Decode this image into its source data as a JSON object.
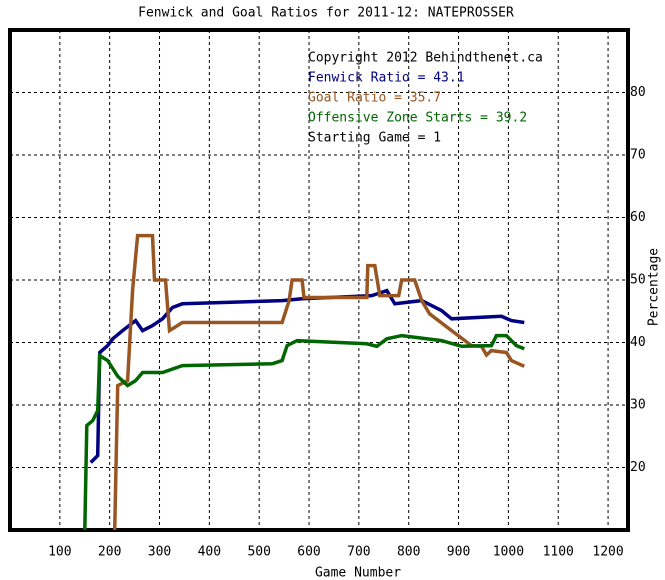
{
  "chart_data": {
    "type": "line",
    "title": "Fenwick and Goal Ratios for 2011-12: NATEPROSSER",
    "x_label": "Game Number",
    "y_label": "Percentage",
    "xlim": [
      0,
      1240
    ],
    "ylim": [
      10,
      90
    ],
    "xticks": [
      100,
      200,
      300,
      400,
      500,
      600,
      700,
      800,
      900,
      1000,
      1100,
      1200
    ],
    "yticks": [
      20,
      30,
      40,
      50,
      60,
      70,
      80
    ],
    "grid": true,
    "annotations": [
      {
        "text": "Copyright 2012 Behindthenet.ca",
        "color": "#000000"
      },
      {
        "text": "Fenwick Ratio = 43.1",
        "color": "#000080"
      },
      {
        "text": "Goal Ratio = 35.7",
        "color": "#995522"
      },
      {
        "text": "Offensive Zone Starts = 39.2",
        "color": "#006600"
      },
      {
        "text": "Starting Game = 1",
        "color": "#000000"
      }
    ],
    "series": [
      {
        "color": "#000080",
        "x": [
          162,
          176,
          180,
          196,
          206,
          226,
          252,
          266,
          286,
          306,
          326,
          346,
          546,
          586,
          726,
          756,
          772,
          826,
          866,
          886,
          986,
          1006,
          1032
        ],
        "values": [
          20.8,
          21.9,
          38.4,
          39.5,
          40.6,
          41.9,
          43.5,
          41.9,
          42.7,
          43.8,
          45.6,
          46.2,
          46.7,
          47,
          47.5,
          48.3,
          46.2,
          46.7,
          45.1,
          43.8,
          44.2,
          43.5,
          43.2
        ]
      },
      {
        "color": "#995522",
        "x": [
          210,
          216,
          236,
          246,
          256,
          286,
          290,
          312,
          320,
          346,
          546,
          560,
          566,
          586,
          590,
          716,
          718,
          732,
          742,
          780,
          786,
          812,
          826,
          842,
          886,
          926,
          946,
          956,
          966,
          996,
          1006,
          1032
        ],
        "values": [
          10,
          33.1,
          33.9,
          48.4,
          57.1,
          57.1,
          50,
          50,
          41.9,
          43.2,
          43.2,
          46.7,
          50,
          50,
          47.2,
          47.2,
          52.3,
          52.3,
          47.5,
          47.5,
          50,
          50,
          46.7,
          44.6,
          41.9,
          39.5,
          39.4,
          38,
          38.7,
          38.4,
          37.1,
          36.2
        ]
      },
      {
        "color": "#006600",
        "x": [
          150,
          154,
          166,
          176,
          180,
          196,
          216,
          236,
          252,
          266,
          306,
          346,
          526,
          546,
          556,
          576,
          716,
          736,
          756,
          786,
          866,
          906,
          966,
          976,
          996,
          1016,
          1032
        ],
        "values": [
          10,
          26.7,
          27.5,
          29.1,
          37.9,
          37.1,
          34.6,
          33.1,
          33.9,
          35.2,
          35.2,
          36.3,
          36.6,
          37.1,
          39.5,
          40.3,
          39.8,
          39.4,
          40.6,
          41.1,
          40.3,
          39.4,
          39.5,
          41.1,
          41.1,
          39.5,
          39
        ]
      }
    ]
  }
}
